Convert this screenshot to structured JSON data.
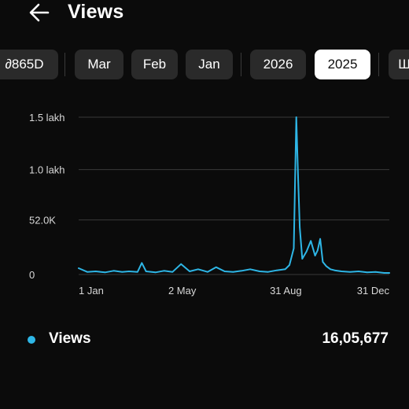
{
  "header": {
    "title": "Views",
    "back_icon": "arrow-left-icon"
  },
  "chips": [
    {
      "label": "∂865D",
      "selected": false
    },
    {
      "label": "Mar",
      "selected": false
    },
    {
      "label": "Feb",
      "selected": false
    },
    {
      "label": "Jan",
      "selected": false
    },
    {
      "label": "2026",
      "selected": false
    },
    {
      "label": "2025",
      "selected": true
    },
    {
      "label": "Ш",
      "selected": false
    }
  ],
  "colors": {
    "background": "#0b0b0b",
    "chip_bg": "#2a2a2a",
    "chip_selected_bg": "#ffffff",
    "series": "#2eb6e6",
    "gridline": "#3a3a3a"
  },
  "chart_data": {
    "type": "line",
    "x_tick_labels": [
      "1 Jan",
      "2 May",
      "31 Aug",
      "31 Dec"
    ],
    "y_tick_labels": [
      "0",
      "52.0K",
      "1.0 lakh",
      "1.5 lakh"
    ],
    "y_ticks": [
      0,
      52000,
      100000,
      150000
    ],
    "ylim": [
      0,
      150000
    ],
    "x_range": [
      "2025-01-01",
      "2025-12-31"
    ],
    "grid": true,
    "legend": "bottom-left",
    "series": [
      {
        "name": "Views",
        "x": [
          "2025-01-01",
          "2025-01-11",
          "2025-01-21",
          "2025-02-01",
          "2025-02-11",
          "2025-02-21",
          "2025-03-01",
          "2025-03-11",
          "2025-03-16",
          "2025-03-21",
          "2025-04-01",
          "2025-04-11",
          "2025-04-21",
          "2025-05-01",
          "2025-05-11",
          "2025-05-21",
          "2025-06-01",
          "2025-06-11",
          "2025-06-21",
          "2025-07-01",
          "2025-07-11",
          "2025-07-21",
          "2025-08-01",
          "2025-08-11",
          "2025-08-21",
          "2025-08-31",
          "2025-09-05",
          "2025-09-10",
          "2025-09-13",
          "2025-09-15",
          "2025-09-17",
          "2025-09-20",
          "2025-09-25",
          "2025-09-30",
          "2025-10-05",
          "2025-10-08",
          "2025-10-11",
          "2025-10-14",
          "2025-10-18",
          "2025-10-23",
          "2025-10-28",
          "2025-11-05",
          "2025-11-15",
          "2025-11-25",
          "2025-12-05",
          "2025-12-15",
          "2025-12-25",
          "2025-12-31"
        ],
        "values": [
          6000,
          2500,
          3000,
          2000,
          3500,
          2500,
          3000,
          2500,
          11000,
          3000,
          2000,
          3500,
          2500,
          10000,
          3000,
          5000,
          2500,
          7000,
          3000,
          2500,
          3500,
          5000,
          3000,
          2500,
          4000,
          5000,
          9000,
          25000,
          150000,
          95000,
          45000,
          15000,
          22000,
          32000,
          18000,
          23000,
          34000,
          12000,
          8000,
          5000,
          4000,
          3000,
          2500,
          3000,
          2000,
          2500,
          1500,
          1500
        ]
      }
    ]
  },
  "legend": {
    "label": "Views",
    "total": "16,05,677"
  }
}
